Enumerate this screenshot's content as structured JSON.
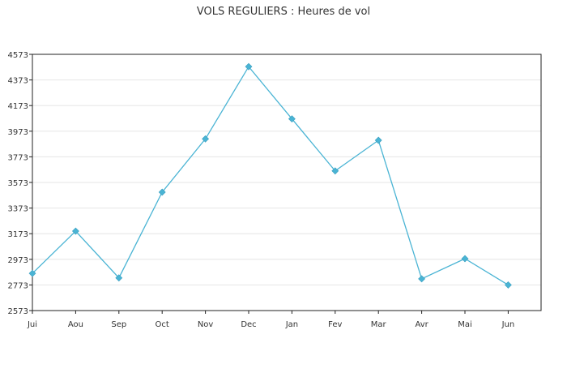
{
  "chart_data": {
    "type": "line",
    "title": "VOLS REGULIERS : Heures de vol",
    "xlabel": "",
    "ylabel": "",
    "categories": [
      "Jui",
      "Aou",
      "Sep",
      "Oct",
      "Nov",
      "Dec",
      "Jan",
      "Fev",
      "Mar",
      "Avr",
      "Mai",
      "Jun"
    ],
    "series": [
      {
        "values": [
          2863,
          3193,
          2828,
          3497,
          3913,
          4477,
          4069,
          3663,
          3902,
          2821,
          2978,
          2773
        ]
      }
    ],
    "ylim": [
      2573,
      4573
    ],
    "yticks": [
      2573,
      2773,
      2973,
      3173,
      3373,
      3573,
      3773,
      3973,
      4173,
      4373,
      4573
    ],
    "grid": true,
    "legend": "none",
    "colors": {
      "line": "#4ab4d4",
      "marker": "#4ab4d4",
      "grid": "#e6e6e6",
      "axis": "#222222",
      "text": "#333333"
    }
  }
}
